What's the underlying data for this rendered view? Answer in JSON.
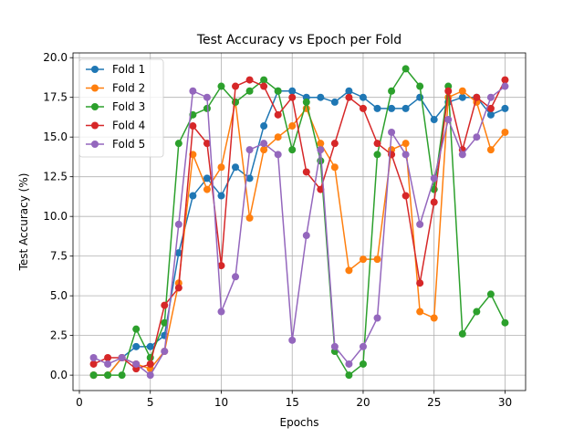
{
  "chart_data": {
    "type": "line",
    "title": "Test Accuracy vs Epoch per Fold",
    "xlabel": "Epochs",
    "ylabel": "Test Accuracy (%)",
    "xlim": [
      -0.45,
      31.45
    ],
    "ylim": [
      -0.97,
      20.3
    ],
    "xticks": [
      0,
      5,
      10,
      15,
      20,
      25,
      30
    ],
    "yticks": [
      0.0,
      2.5,
      5.0,
      7.5,
      10.0,
      12.5,
      15.0,
      17.5,
      20.0
    ],
    "ytick_labels": [
      "0.0",
      "2.5",
      "5.0",
      "7.5",
      "10.0",
      "12.5",
      "15.0",
      "17.5",
      "20.0"
    ],
    "grid": true,
    "legend_position": "top-left",
    "x": [
      1,
      2,
      3,
      4,
      5,
      6,
      7,
      8,
      9,
      10,
      11,
      12,
      13,
      14,
      15,
      16,
      17,
      18,
      19,
      20,
      21,
      22,
      23,
      24,
      25,
      26,
      27,
      28,
      29,
      30
    ],
    "series": [
      {
        "name": "Fold 1",
        "color": "#1f77b4",
        "values": [
          0.0,
          0.0,
          1.1,
          1.8,
          1.8,
          2.5,
          7.7,
          11.3,
          12.4,
          11.3,
          13.1,
          12.4,
          15.7,
          17.9,
          17.9,
          17.5,
          17.5,
          17.2,
          17.9,
          17.5,
          16.8,
          16.8,
          16.8,
          17.5,
          16.1,
          17.2,
          17.5,
          17.5,
          16.4,
          16.8
        ]
      },
      {
        "name": "Fold 2",
        "color": "#ff7f0e",
        "values": [
          0.0,
          0.0,
          1.1,
          0.7,
          0.4,
          1.5,
          5.8,
          13.9,
          11.7,
          13.1,
          17.2,
          9.9,
          14.2,
          15.0,
          15.7,
          16.8,
          14.6,
          13.1,
          6.6,
          7.3,
          7.3,
          14.2,
          14.6,
          4.0,
          3.6,
          17.5,
          17.9,
          17.2,
          14.2,
          15.3
        ]
      },
      {
        "name": "Fold 3",
        "color": "#2ca02c",
        "values": [
          0.0,
          0.0,
          0.0,
          2.9,
          1.1,
          3.3,
          14.6,
          16.4,
          16.8,
          18.2,
          17.2,
          17.9,
          18.6,
          17.9,
          14.2,
          17.2,
          13.5,
          1.5,
          0.0,
          0.7,
          13.9,
          17.9,
          19.3,
          18.2,
          11.7,
          18.2,
          2.6,
          4.0,
          5.1,
          3.3
        ]
      },
      {
        "name": "Fold 4",
        "color": "#d62728",
        "values": [
          0.7,
          1.1,
          1.1,
          0.4,
          0.7,
          4.4,
          5.5,
          15.7,
          14.6,
          6.9,
          18.2,
          18.6,
          18.2,
          16.4,
          17.5,
          12.8,
          11.7,
          14.6,
          17.5,
          16.8,
          14.6,
          13.9,
          11.3,
          5.8,
          10.9,
          17.9,
          14.2,
          17.5,
          16.8,
          18.6
        ]
      },
      {
        "name": "Fold 5",
        "color": "#9467bd",
        "values": [
          1.1,
          0.7,
          1.1,
          0.7,
          0.0,
          1.5,
          9.5,
          17.9,
          17.5,
          4.0,
          6.2,
          14.2,
          14.6,
          13.9,
          2.2,
          8.8,
          14.2,
          1.8,
          0.7,
          1.8,
          3.6,
          15.3,
          13.9,
          9.5,
          12.4,
          16.1,
          13.9,
          15.0,
          17.5,
          18.2
        ]
      }
    ]
  }
}
